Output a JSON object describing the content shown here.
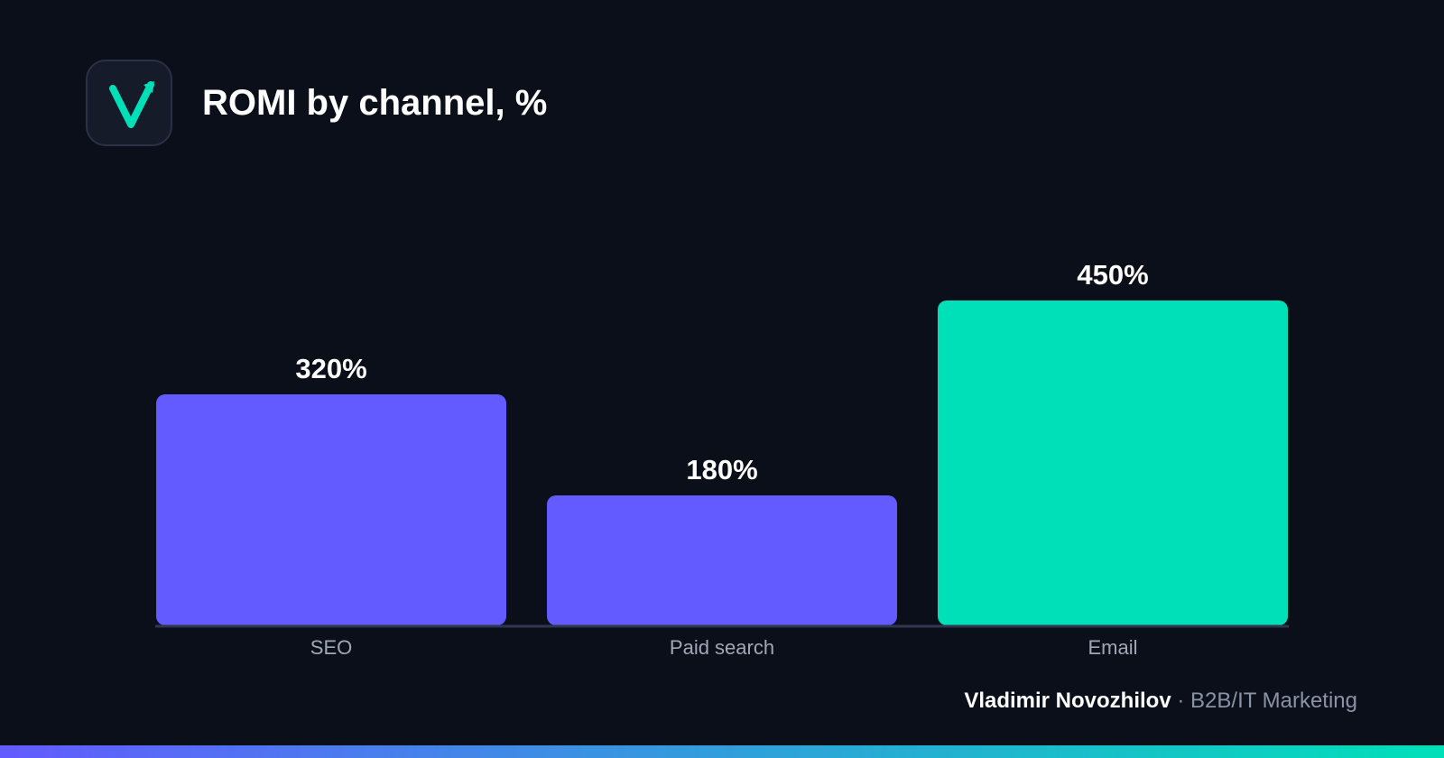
{
  "header": {
    "title": "ROMI by channel, %"
  },
  "footer": {
    "author": "Vladimir Novozhilov",
    "separator": "·",
    "tagline": "B2B/IT Marketing"
  },
  "colors": {
    "background": "#0b0f19",
    "bar_default": "#635bff",
    "bar_highlight": "#00e0b8",
    "axis_line": "#2e3650",
    "label_value": "#ffffff",
    "label_category": "#a0a8b8",
    "gradient_start": "#635bff",
    "gradient_end": "#00e0b8"
  },
  "icons": {
    "logo": "checkmark-arrow-icon"
  },
  "chart_data": {
    "type": "bar",
    "title": "ROMI by channel, %",
    "categories": [
      "SEO",
      "Paid search",
      "Email"
    ],
    "values": [
      320,
      180,
      450
    ],
    "value_labels": [
      "320%",
      "180%",
      "450%"
    ],
    "highlight_index": 2,
    "xlabel": "",
    "ylabel": "",
    "ylim": [
      0,
      450
    ],
    "grid": false,
    "legend": "none"
  }
}
